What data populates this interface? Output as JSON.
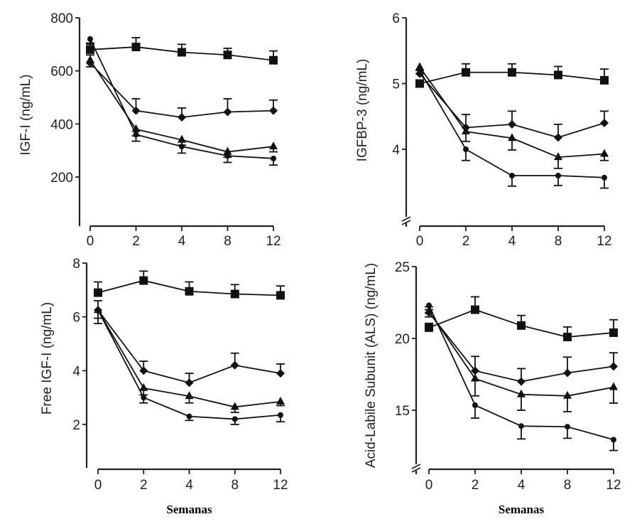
{
  "chart_data": [
    {
      "type": "line",
      "id": "igf1",
      "title": "",
      "xlabel": "",
      "ylabel": "IGF-I (ng/mL)",
      "x": [
        0,
        2,
        4,
        8,
        12
      ],
      "x_tick_labels": [
        "0",
        "2",
        "4",
        "8",
        "12"
      ],
      "y_ticks": [
        200,
        400,
        600,
        800
      ],
      "y_tick_labels": [
        "200",
        "400",
        "600",
        "800"
      ],
      "ylim": [
        0,
        800
      ],
      "axis_break": false,
      "grid": false,
      "series": [
        {
          "name": "square",
          "marker": "square",
          "values": [
            680,
            690,
            670,
            660,
            640
          ],
          "err": [
            25,
            35,
            30,
            25,
            35
          ]
        },
        {
          "name": "diamond",
          "marker": "diamond",
          "values": [
            630,
            450,
            425,
            445,
            450
          ],
          "err": [
            30,
            45,
            35,
            50,
            40
          ]
        },
        {
          "name": "triangle",
          "marker": "triangle",
          "values": [
            640,
            380,
            340,
            295,
            315
          ],
          "err": [
            25,
            25,
            20,
            20,
            20
          ]
        },
        {
          "name": "circle",
          "marker": "circle",
          "values": [
            720,
            360,
            315,
            280,
            270
          ],
          "err": [
            20,
            25,
            25,
            25,
            25
          ]
        }
      ]
    },
    {
      "type": "line",
      "id": "igfbp3",
      "title": "",
      "xlabel": "",
      "ylabel": "IGFBP-3 (ng/mL)",
      "x": [
        0,
        2,
        4,
        8,
        12
      ],
      "x_tick_labels": [
        "0",
        "2",
        "4",
        "8",
        "12"
      ],
      "y_ticks": [
        4,
        5,
        6
      ],
      "y_tick_labels": [
        "4",
        "5",
        "6"
      ],
      "ylim": [
        3.0,
        6.0
      ],
      "axis_break": true,
      "grid": false,
      "series": [
        {
          "name": "square",
          "marker": "square",
          "values": [
            5.0,
            5.17,
            5.17,
            5.13,
            5.05
          ],
          "err": [
            0.05,
            0.13,
            0.13,
            0.13,
            0.17
          ]
        },
        {
          "name": "diamond",
          "marker": "diamond",
          "values": [
            5.15,
            4.33,
            4.38,
            4.18,
            4.4
          ],
          "err": [
            0.05,
            0.2,
            0.2,
            0.2,
            0.18
          ]
        },
        {
          "name": "triangle",
          "marker": "triangle",
          "values": [
            5.25,
            4.27,
            4.17,
            3.88,
            3.93
          ],
          "err": [
            0.05,
            0.15,
            0.18,
            0.17,
            0.1
          ]
        },
        {
          "name": "circle",
          "marker": "circle",
          "values": [
            5.2,
            4.0,
            3.6,
            3.6,
            3.57
          ],
          "err": [
            0.05,
            0.17,
            0.16,
            0.15,
            0.16
          ]
        }
      ]
    },
    {
      "type": "line",
      "id": "free-igf1",
      "title": "",
      "xlabel": "Semanas",
      "ylabel": "Free IGF-I (ng/mL)",
      "x": [
        0,
        2,
        4,
        8,
        12
      ],
      "x_tick_labels": [
        "0",
        "2",
        "4",
        "8",
        "12"
      ],
      "y_ticks": [
        2,
        4,
        6,
        8
      ],
      "y_tick_labels": [
        "2",
        "4",
        "6",
        "8"
      ],
      "ylim": [
        0,
        8
      ],
      "axis_break": false,
      "grid": false,
      "series": [
        {
          "name": "square",
          "marker": "square",
          "values": [
            6.9,
            7.35,
            6.95,
            6.85,
            6.8
          ],
          "err": [
            0.4,
            0.35,
            0.35,
            0.35,
            0.35
          ]
        },
        {
          "name": "diamond",
          "marker": "diamond",
          "values": [
            6.25,
            4.0,
            3.55,
            4.2,
            3.9
          ],
          "err": [
            0.35,
            0.35,
            0.35,
            0.45,
            0.35
          ]
        },
        {
          "name": "triangle",
          "marker": "triangle",
          "values": [
            6.25,
            3.35,
            3.05,
            2.65,
            2.85
          ],
          "err": [
            0.3,
            0.25,
            0.25,
            0.2,
            0.15
          ]
        },
        {
          "name": "circle",
          "marker": "circle",
          "values": [
            6.25,
            3.0,
            2.3,
            2.2,
            2.35
          ],
          "err": [
            0.5,
            0.2,
            0.15,
            0.2,
            0.25
          ]
        }
      ]
    },
    {
      "type": "line",
      "id": "als",
      "title": "",
      "xlabel": "Semanas",
      "ylabel": "Acid-Labile Subunit (ALS) (ng/mL)",
      "x": [
        0,
        2,
        4,
        8,
        12
      ],
      "x_tick_labels": [
        "0",
        "2",
        "4",
        "8",
        "12"
      ],
      "y_ticks": [
        15,
        20,
        25
      ],
      "y_tick_labels": [
        "15",
        "20",
        "25"
      ],
      "ylim": [
        11.5,
        25
      ],
      "axis_break": true,
      "grid": false,
      "series": [
        {
          "name": "square",
          "marker": "square",
          "values": [
            20.75,
            22.0,
            20.9,
            20.1,
            20.4
          ],
          "err": [
            0.3,
            0.9,
            0.7,
            0.7,
            0.9
          ]
        },
        {
          "name": "diamond",
          "marker": "diamond",
          "values": [
            21.8,
            17.75,
            17.0,
            17.6,
            18.05
          ],
          "err": [
            0.4,
            1.0,
            0.9,
            1.1,
            0.95
          ]
        },
        {
          "name": "triangle",
          "marker": "triangle",
          "values": [
            21.9,
            17.2,
            16.1,
            16.0,
            16.6
          ],
          "err": [
            0.4,
            1.2,
            1.1,
            1.1,
            1.1
          ]
        },
        {
          "name": "circle",
          "marker": "circle",
          "values": [
            22.3,
            15.35,
            13.9,
            13.85,
            12.95
          ],
          "err": [
            0.3,
            0.9,
            0.9,
            0.8,
            0.75
          ]
        }
      ]
    }
  ]
}
